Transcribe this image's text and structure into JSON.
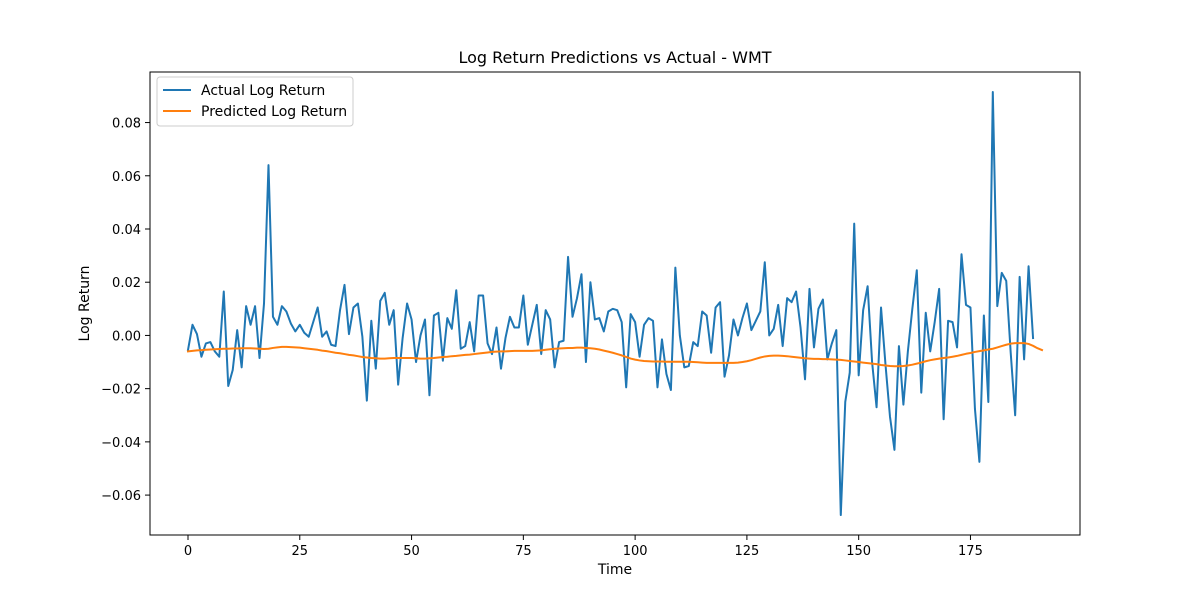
{
  "chart_data": {
    "type": "line",
    "title": "Log Return Predictions vs Actual - WMT",
    "xlabel": "Time",
    "ylabel": "Log Return",
    "xlim": [
      -8.5,
      199.5
    ],
    "ylim": [
      -0.075,
      0.099
    ],
    "xticks": [
      0,
      25,
      50,
      75,
      100,
      125,
      150,
      175
    ],
    "yticks": [
      -0.06,
      -0.04,
      -0.02,
      0.0,
      0.02,
      0.04,
      0.06,
      0.08
    ],
    "ytick_labels": [
      "−0.06",
      "−0.04",
      "−0.02",
      "0.00",
      "0.02",
      "0.04",
      "0.06",
      "0.08"
    ],
    "grid": false,
    "legend_position": "top-left",
    "series": [
      {
        "name": "Actual Log Return",
        "color": "#1f77b4",
        "x_start": 0,
        "values": [
          -0.0055,
          0.004,
          0.0005,
          -0.008,
          -0.003,
          -0.0025,
          -0.006,
          -0.008,
          0.0165,
          -0.019,
          -0.013,
          0.002,
          -0.012,
          0.011,
          0.004,
          0.011,
          -0.0085,
          0.012,
          0.064,
          0.007,
          0.004,
          0.011,
          0.009,
          0.0045,
          0.0015,
          0.004,
          0.001,
          -0.0005,
          0.005,
          0.0105,
          -0.0005,
          0.0015,
          -0.0035,
          -0.004,
          0.0095,
          0.019,
          0.0005,
          0.0105,
          0.012,
          -0.0005,
          -0.0245,
          0.0055,
          -0.0125,
          0.013,
          0.016,
          0.004,
          0.0095,
          -0.0185,
          -0.001,
          0.012,
          0.006,
          -0.01,
          0.0,
          0.006,
          -0.0225,
          0.0075,
          0.0085,
          -0.0095,
          0.0065,
          0.0025,
          0.017,
          -0.005,
          -0.004,
          0.005,
          -0.006,
          0.015,
          0.015,
          -0.003,
          -0.007,
          0.003,
          -0.0125,
          -0.001,
          0.007,
          0.003,
          0.003,
          0.015,
          -0.0035,
          0.004,
          0.0115,
          -0.007,
          0.0095,
          0.006,
          -0.012,
          -0.0025,
          -0.002,
          0.0295,
          0.007,
          0.014,
          0.023,
          -0.01,
          0.02,
          0.006,
          0.0065,
          0.0015,
          0.009,
          0.01,
          0.0095,
          0.005,
          -0.0195,
          0.008,
          0.005,
          -0.008,
          0.004,
          0.0065,
          0.0055,
          -0.0195,
          -0.0015,
          -0.0145,
          -0.0205,
          0.0255,
          0.0,
          -0.012,
          -0.0115,
          -0.0025,
          -0.004,
          0.009,
          0.0075,
          -0.0065,
          0.0105,
          0.0125,
          -0.0155,
          -0.0075,
          0.006,
          0.0,
          0.0065,
          0.012,
          0.002,
          0.0055,
          0.009,
          0.0275,
          0.0,
          0.0025,
          0.0115,
          -0.004,
          0.014,
          0.0125,
          0.0165,
          0.003,
          -0.0165,
          0.0175,
          -0.0045,
          0.01,
          0.0135,
          -0.009,
          -0.003,
          0.002,
          -0.0675,
          -0.025,
          -0.014,
          0.042,
          -0.015,
          0.0095,
          0.0185,
          -0.01,
          -0.027,
          0.0105,
          -0.011,
          -0.0305,
          -0.043,
          -0.004,
          -0.026,
          -0.006,
          0.01,
          0.0245,
          -0.0215,
          0.0085,
          -0.006,
          0.005,
          0.0175,
          -0.0315,
          0.0055,
          0.005,
          -0.0045,
          0.0305,
          0.0115,
          0.0105,
          -0.0275,
          -0.0475,
          0.0075,
          -0.025,
          0.0915,
          0.011,
          0.0235,
          0.0205,
          -0.0065,
          -0.03,
          0.022,
          -0.009,
          0.026,
          -0.001
        ]
      },
      {
        "name": "Predicted Log Return",
        "color": "#ff7f0e",
        "x_start": 0,
        "values": [
          -0.006,
          -0.0058,
          -0.0056,
          -0.0055,
          -0.0054,
          -0.0053,
          -0.0052,
          -0.0051,
          -0.005,
          -0.005,
          -0.0049,
          -0.0049,
          -0.0048,
          -0.0048,
          -0.0048,
          -0.0049,
          -0.005,
          -0.0051,
          -0.005,
          -0.0047,
          -0.0045,
          -0.0043,
          -0.0043,
          -0.0044,
          -0.0045,
          -0.0046,
          -0.0048,
          -0.005,
          -0.0052,
          -0.0054,
          -0.0057,
          -0.0059,
          -0.0062,
          -0.0065,
          -0.0067,
          -0.007,
          -0.0073,
          -0.0075,
          -0.0078,
          -0.0081,
          -0.0083,
          -0.0085,
          -0.0086,
          -0.0087,
          -0.0087,
          -0.0086,
          -0.0085,
          -0.0085,
          -0.0085,
          -0.0085,
          -0.0085,
          -0.0086,
          -0.0087,
          -0.0087,
          -0.0086,
          -0.0085,
          -0.0083,
          -0.0081,
          -0.008,
          -0.0078,
          -0.0077,
          -0.0075,
          -0.0073,
          -0.0072,
          -0.007,
          -0.0068,
          -0.0066,
          -0.0064,
          -0.0062,
          -0.0061,
          -0.006,
          -0.006,
          -0.0059,
          -0.0058,
          -0.0058,
          -0.0058,
          -0.0058,
          -0.0058,
          -0.0057,
          -0.0056,
          -0.0054,
          -0.0052,
          -0.005,
          -0.0049,
          -0.0048,
          -0.0047,
          -0.0047,
          -0.0046,
          -0.0046,
          -0.0047,
          -0.0048,
          -0.005,
          -0.0053,
          -0.0057,
          -0.0061,
          -0.0065,
          -0.007,
          -0.0075,
          -0.0081,
          -0.0087,
          -0.0091,
          -0.0094,
          -0.0096,
          -0.0097,
          -0.0098,
          -0.0098,
          -0.0098,
          -0.0099,
          -0.0099,
          -0.0099,
          -0.0099,
          -0.0099,
          -0.0099,
          -0.01,
          -0.0101,
          -0.0102,
          -0.0103,
          -0.0103,
          -0.0103,
          -0.0103,
          -0.0103,
          -0.0103,
          -0.0103,
          -0.0102,
          -0.01,
          -0.0097,
          -0.0093,
          -0.0088,
          -0.0083,
          -0.0079,
          -0.0077,
          -0.0076,
          -0.0076,
          -0.0077,
          -0.0078,
          -0.008,
          -0.0082,
          -0.0084,
          -0.0086,
          -0.0087,
          -0.0088,
          -0.0088,
          -0.0089,
          -0.0089,
          -0.009,
          -0.0091,
          -0.0092,
          -0.0094,
          -0.0096,
          -0.0098,
          -0.01,
          -0.0102,
          -0.0104,
          -0.0106,
          -0.0108,
          -0.0111,
          -0.0113,
          -0.0115,
          -0.0116,
          -0.0116,
          -0.0115,
          -0.0113,
          -0.011,
          -0.0106,
          -0.0102,
          -0.0097,
          -0.0093,
          -0.009,
          -0.0087,
          -0.0085,
          -0.0083,
          -0.008,
          -0.0077,
          -0.0073,
          -0.0069,
          -0.0066,
          -0.0062,
          -0.0059,
          -0.0056,
          -0.0053,
          -0.005,
          -0.0045,
          -0.004,
          -0.0035,
          -0.0031,
          -0.0029,
          -0.0029,
          -0.0029,
          -0.0032,
          -0.0039,
          -0.0048,
          -0.0055
        ]
      }
    ]
  }
}
